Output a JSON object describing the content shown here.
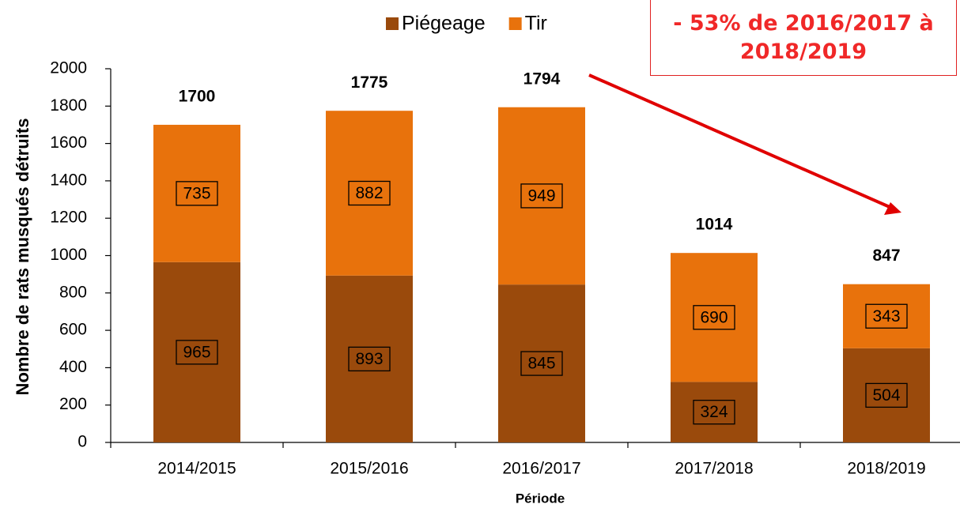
{
  "chart_data": {
    "type": "stacked_bar",
    "x_label": "Période",
    "y_label": "Nombre de rats musqués détruits",
    "categories": [
      "2014/2015",
      "2015/2016",
      "2016/2017",
      "2017/2018",
      "2018/2019"
    ],
    "series": [
      {
        "name": "Piégeage",
        "color": "#9a4a0c",
        "values": [
          965,
          893,
          845,
          324,
          504
        ]
      },
      {
        "name": "Tir",
        "color": "#e8720c",
        "values": [
          735,
          882,
          949,
          690,
          343
        ]
      }
    ],
    "totals": [
      1700,
      1775,
      1794,
      1014,
      847
    ],
    "annotation": "- 53% de 2016/2017 à 2018/2019",
    "ylim": [
      0,
      2000
    ],
    "yticks": [
      0,
      200,
      400,
      600,
      800,
      1000,
      1200,
      1400,
      1600,
      1800,
      2000
    ],
    "legend": "top"
  }
}
